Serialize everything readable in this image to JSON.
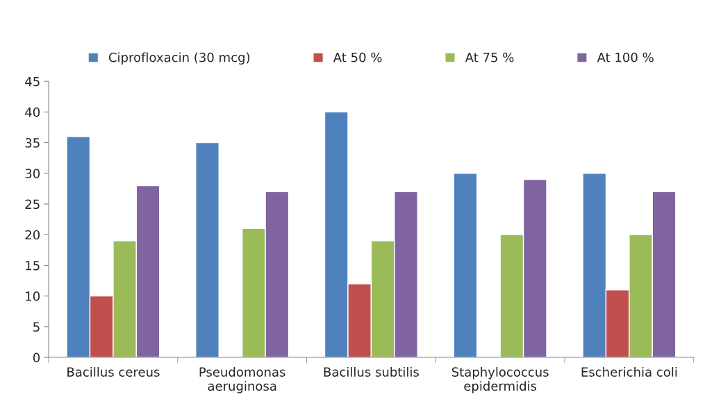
{
  "chart_data": {
    "type": "bar",
    "categories": [
      "Bacillus cereus",
      "Pseudomonas\naeruginosa",
      "Bacillus subtilis",
      "Staphylococcus\nepidermidis",
      "Escherichia coli"
    ],
    "series": [
      {
        "name": "Ciprofloxacin (30 mcg)",
        "color": "#4f81bd",
        "values": [
          36,
          35,
          40,
          30,
          30
        ]
      },
      {
        "name": "At 50 %",
        "color": "#c0504d",
        "values": [
          10,
          null,
          12,
          null,
          11
        ]
      },
      {
        "name": "At 75 %",
        "color": "#9bbb59",
        "values": [
          19,
          21,
          19,
          20,
          20
        ]
      },
      {
        "name": "At 100 %",
        "color": "#8064a2",
        "values": [
          28,
          27,
          27,
          29,
          27
        ]
      }
    ],
    "ylim": [
      0,
      45
    ],
    "yticks": [
      0,
      5,
      10,
      15,
      20,
      25,
      30,
      35,
      40,
      45
    ],
    "grid": false,
    "legend": "top"
  }
}
